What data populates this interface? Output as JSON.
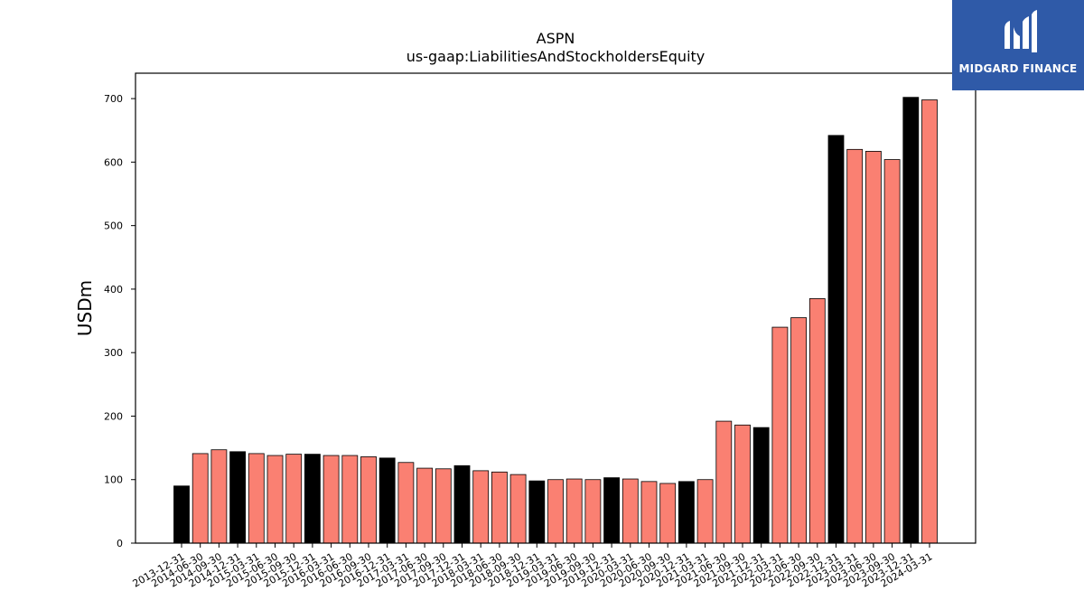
{
  "brand": {
    "name": "MIDGARD FINANCE",
    "bg_color": "#2f5aa8"
  },
  "colors": {
    "fy_bar": "#000000",
    "quarter_bar": "#fa8072",
    "edge": "#000000"
  },
  "chart_data": {
    "type": "bar",
    "title": "ASPN",
    "subtitle": "us-gaap:LiabilitiesAndStockholdersEquity",
    "ylabel": "USDm",
    "xlabel": "",
    "ylim": [
      0,
      740
    ],
    "yticks": [
      0,
      100,
      200,
      300,
      400,
      500,
      600,
      700
    ],
    "categories": [
      "2013-12-31",
      "2014-06-30",
      "2014-09-30",
      "2014-12-31",
      "2015-03-31",
      "2015-06-30",
      "2015-09-30",
      "2015-12-31",
      "2016-03-31",
      "2016-06-30",
      "2016-09-30",
      "2016-12-31",
      "2017-03-31",
      "2017-06-30",
      "2017-09-30",
      "2017-12-31",
      "2018-03-31",
      "2018-06-30",
      "2018-09-30",
      "2018-12-31",
      "2019-03-31",
      "2019-06-30",
      "2019-09-30",
      "2019-12-31",
      "2020-03-31",
      "2020-06-30",
      "2020-09-30",
      "2020-12-31",
      "2021-03-31",
      "2021-06-30",
      "2021-09-30",
      "2021-12-31",
      "2022-03-31",
      "2022-06-30",
      "2022-09-30",
      "2022-12-31",
      "2023-03-31",
      "2023-06-30",
      "2023-09-30",
      "2023-12-31",
      "2024-03-31"
    ],
    "values": [
      90,
      141,
      147,
      144,
      141,
      138,
      140,
      140,
      138,
      138,
      136,
      134,
      127,
      118,
      117,
      122,
      114,
      112,
      108,
      98,
      100,
      101,
      100,
      103,
      101,
      97,
      94,
      97,
      100,
      192,
      186,
      182,
      340,
      355,
      385,
      642,
      620,
      617,
      604,
      702,
      698
    ],
    "fiscal_year_end": [
      true,
      false,
      false,
      true,
      false,
      false,
      false,
      true,
      false,
      false,
      false,
      true,
      false,
      false,
      false,
      true,
      false,
      false,
      false,
      true,
      false,
      false,
      false,
      true,
      false,
      false,
      false,
      true,
      false,
      false,
      false,
      true,
      false,
      false,
      false,
      true,
      false,
      false,
      false,
      true,
      false
    ],
    "grid": false,
    "legend": "none"
  }
}
